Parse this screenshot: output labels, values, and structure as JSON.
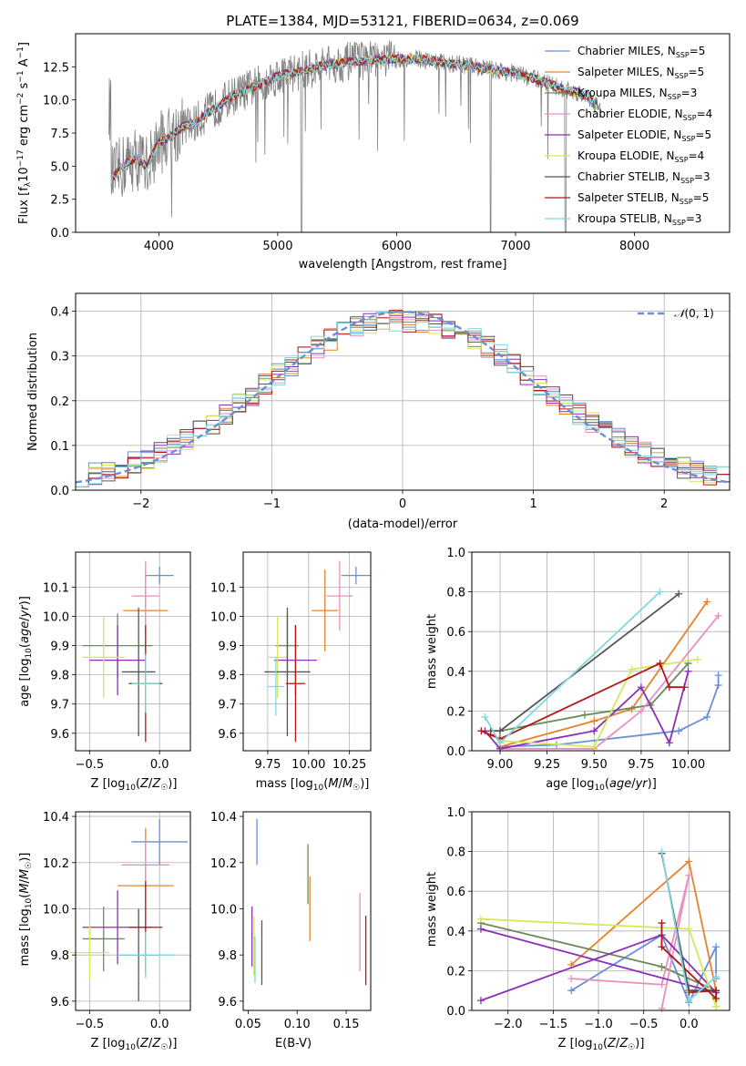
{
  "figure": {
    "title": "PLATE=1384, MJD=53121, FIBERID=0634, z=0.069"
  },
  "colors": [
    "#6a8fd8",
    "#e8812a",
    "#6d8a5a",
    "#e98fc0",
    "#8b2fb8",
    "#d4e85a",
    "#555555",
    "#b01818",
    "#7fd8e0"
  ],
  "chart_data": [
    {
      "id": "spectrum",
      "type": "line",
      "title": "PLATE=1384, MJD=53121, FIBERID=0634, z=0.069",
      "xlabel": "wavelength [Angstrom, rest frame]",
      "ylabel": "Flux [f$_\\lambda$10$^{-17}$ erg cm$^{-2}$ s$^{-1}$ A$^{-1}$]",
      "ylabel_parts": [
        "Flux [f",
        "λ",
        "10",
        "−17",
        " erg cm",
        "−2",
        " s",
        "−1",
        " A",
        "−1",
        "]"
      ],
      "xlim": [
        3300,
        8800
      ],
      "ylim": [
        0,
        15
      ],
      "xticks": [
        4000,
        5000,
        6000,
        7000,
        8000
      ],
      "yticks": [
        "0.0",
        "2.5",
        "5.0",
        "7.5",
        "10.0",
        "12.5"
      ],
      "grid": false,
      "legend_position": "right",
      "legend": [
        {
          "base": "Chabrier MILES, N",
          "sub": "SSP",
          "suffix": "=5"
        },
        {
          "base": "Salpeter MILES, N",
          "sub": "SSP",
          "suffix": "=5"
        },
        {
          "base": "Kroupa MILES, N",
          "sub": "SSP",
          "suffix": "=3"
        },
        {
          "base": "Chabrier ELODIE, N",
          "sub": "SSP",
          "suffix": "=4"
        },
        {
          "base": "Salpeter ELODIE, N",
          "sub": "SSP",
          "suffix": "=5"
        },
        {
          "base": "Kroupa ELODIE, N",
          "sub": "SSP",
          "suffix": "=4"
        },
        {
          "base": "Chabrier STELIB, N",
          "sub": "SSP",
          "suffix": "=3"
        },
        {
          "base": "Salpeter STELIB, N",
          "sub": "SSP",
          "suffix": "=5"
        },
        {
          "base": "Kroupa STELIB, N",
          "sub": "SSP",
          "suffix": "=3"
        }
      ],
      "continuum": [
        [
          3600,
          4.0
        ],
        [
          3700,
          5.0
        ],
        [
          3800,
          5.6
        ],
        [
          3900,
          5.0
        ],
        [
          4000,
          6.8
        ],
        [
          4100,
          7.2
        ],
        [
          4200,
          8.0
        ],
        [
          4300,
          8.2
        ],
        [
          4400,
          9.0
        ],
        [
          4500,
          9.5
        ],
        [
          4600,
          10.2
        ],
        [
          4800,
          11.0
        ],
        [
          5000,
          11.8
        ],
        [
          5200,
          12.2
        ],
        [
          5400,
          12.6
        ],
        [
          5600,
          12.9
        ],
        [
          5800,
          13.0
        ],
        [
          6000,
          13.1
        ],
        [
          6200,
          13.1
        ],
        [
          6400,
          12.8
        ],
        [
          6600,
          12.6
        ],
        [
          6800,
          12.3
        ],
        [
          7000,
          12.0
        ],
        [
          7200,
          11.5
        ],
        [
          7400,
          10.8
        ],
        [
          7600,
          10.4
        ],
        [
          7700,
          9.4
        ]
      ]
    },
    {
      "id": "residuals",
      "type": "histogram",
      "xlabel": "(data-model)/error",
      "ylabel": "Normed distribution",
      "xlim": [
        -2.5,
        2.5
      ],
      "ylim": [
        0,
        0.44
      ],
      "xticks": [
        "−2",
        "−1",
        "0",
        "1",
        "2"
      ],
      "yticks": [
        "0.0",
        "0.1",
        "0.2",
        "0.3",
        "0.4"
      ],
      "grid": true,
      "legend_position": "top-right",
      "reference_curve": "𝒩(0, 1)",
      "reference_label_parts": [
        "𝒩",
        "(0, 1)"
      ]
    },
    {
      "id": "age_vs_Z",
      "type": "errorbar",
      "xlabel": "Z [log10(Z/Z☉)]",
      "ylabel": "age [log10(age/yr)]",
      "xlim": [
        -0.6,
        0.22
      ],
      "ylim": [
        9.54,
        10.22
      ],
      "xticks": [
        "−0.5",
        "0.0"
      ],
      "yticks": [
        "9.6",
        "9.7",
        "9.8",
        "9.9",
        "10.0",
        "10.1"
      ],
      "grid": true,
      "points": [
        {
          "x": 0.0,
          "y": 10.14,
          "xerr": 0.1,
          "yerr": 0.03
        },
        {
          "x": -0.1,
          "y": 10.02,
          "xerr": 0.16,
          "yerr": 0.14
        },
        {
          "x": -0.3,
          "y": 9.9,
          "xerr": 0.25,
          "yerr": 0.11
        },
        {
          "x": -0.1,
          "y": 10.07,
          "xerr": 0.1,
          "yerr": 0.12
        },
        {
          "x": -0.3,
          "y": 9.85,
          "xerr": 0.2,
          "yerr": 0.12
        },
        {
          "x": -0.4,
          "y": 9.86,
          "xerr": 0.15,
          "yerr": 0.14
        },
        {
          "x": -0.15,
          "y": 9.81,
          "xerr": 0.12,
          "yerr": 0.22
        },
        {
          "x": -0.1,
          "y": 9.77,
          "xerr": 0.12,
          "yerr": 0.2
        },
        {
          "x": -0.1,
          "y": 9.77,
          "xerr": 0.1,
          "yerr": 0.1
        }
      ]
    },
    {
      "id": "age_vs_mass",
      "type": "errorbar",
      "xlabel": "mass [log10(M/M☉)]",
      "ylabel": "",
      "xlim": [
        9.6,
        10.38
      ],
      "ylim": [
        9.54,
        10.22
      ],
      "xticks": [
        "9.75",
        "10.00",
        "10.25"
      ],
      "yticks": [
        "9.6",
        "9.7",
        "9.8",
        "9.9",
        "10.0",
        "10.1"
      ],
      "grid": true,
      "points": [
        {
          "x": 10.29,
          "y": 10.14,
          "xerr": 0.09,
          "yerr": 0.03
        },
        {
          "x": 10.1,
          "y": 10.02,
          "xerr": 0.08,
          "yerr": 0.14
        },
        {
          "x": 9.87,
          "y": 9.9,
          "xerr": 0.07,
          "yerr": 0.11
        },
        {
          "x": 10.19,
          "y": 10.07,
          "xerr": 0.08,
          "yerr": 0.12
        },
        {
          "x": 9.92,
          "y": 9.85,
          "xerr": 0.13,
          "yerr": 0.12
        },
        {
          "x": 9.81,
          "y": 9.86,
          "xerr": 0.06,
          "yerr": 0.14
        },
        {
          "x": 9.87,
          "y": 9.81,
          "xerr": 0.14,
          "yerr": 0.22
        },
        {
          "x": 9.92,
          "y": 9.77,
          "xerr": 0.06,
          "yerr": 0.2
        },
        {
          "x": 9.8,
          "y": 9.76,
          "xerr": 0.05,
          "yerr": 0.1
        }
      ]
    },
    {
      "id": "weight_vs_age",
      "type": "line",
      "xlabel": "age [log10(age/yr)]",
      "ylabel": "mass weight",
      "xlim": [
        8.85,
        10.22
      ],
      "ylim": [
        0,
        1.0
      ],
      "xticks": [
        "9.00",
        "9.25",
        "9.50",
        "9.75",
        "10.00"
      ],
      "yticks": [
        "0.0",
        "0.2",
        "0.4",
        "0.6",
        "0.8",
        "1.0"
      ],
      "grid": true,
      "series": [
        {
          "points": [
            [
              9.0,
              0.02
            ],
            [
              9.3,
              0.03
            ],
            [
              9.95,
              0.1
            ],
            [
              10.1,
              0.17
            ],
            [
              10.16,
              0.33
            ],
            [
              10.16,
              0.38
            ]
          ]
        },
        {
          "points": [
            [
              9.0,
              0.02
            ],
            [
              9.5,
              0.15
            ],
            [
              9.7,
              0.21
            ],
            [
              10.1,
              0.75
            ]
          ]
        },
        {
          "points": [
            [
              9.0,
              0.1
            ],
            [
              9.45,
              0.18
            ],
            [
              9.8,
              0.23
            ],
            [
              10.0,
              0.44
            ]
          ]
        },
        {
          "points": [
            [
              9.0,
              0.01
            ],
            [
              9.5,
              0.01
            ],
            [
              9.75,
              0.2
            ],
            [
              10.16,
              0.68
            ]
          ]
        },
        {
          "points": [
            [
              8.92,
              0.1
            ],
            [
              9.0,
              0.01
            ],
            [
              9.5,
              0.1
            ],
            [
              9.75,
              0.32
            ],
            [
              9.9,
              0.04
            ],
            [
              10.0,
              0.4
            ]
          ]
        },
        {
          "points": [
            [
              9.0,
              0.05
            ],
            [
              9.5,
              0.02
            ],
            [
              9.7,
              0.41
            ],
            [
              10.05,
              0.46
            ]
          ]
        },
        {
          "points": [
            [
              8.95,
              0.1
            ],
            [
              9.0,
              0.1
            ],
            [
              9.95,
              0.79
            ]
          ]
        },
        {
          "points": [
            [
              8.9,
              0.1
            ],
            [
              8.95,
              0.08
            ],
            [
              9.0,
              0.06
            ],
            [
              9.85,
              0.44
            ],
            [
              9.9,
              0.32
            ],
            [
              9.98,
              0.32
            ]
          ]
        },
        {
          "points": [
            [
              8.92,
              0.17
            ],
            [
              9.0,
              0.04
            ],
            [
              9.85,
              0.8
            ]
          ]
        }
      ]
    },
    {
      "id": "mass_vs_Z",
      "type": "errorbar",
      "xlabel": "Z [log10(Z/Z☉)]",
      "ylabel": "mass [log10(M/M☉)]",
      "xlim": [
        -0.6,
        0.22
      ],
      "ylim": [
        9.56,
        10.42
      ],
      "xticks": [
        "−0.5",
        "0.0"
      ],
      "yticks": [
        "9.6",
        "9.8",
        "10.0",
        "10.2",
        "10.4"
      ],
      "grid": true,
      "points": [
        {
          "x": 0.0,
          "y": 10.29,
          "xerr": 0.2,
          "yerr": 0.1
        },
        {
          "x": -0.1,
          "y": 10.1,
          "xerr": 0.2,
          "yerr": 0.25
        },
        {
          "x": -0.4,
          "y": 9.87,
          "xerr": 0.15,
          "yerr": 0.14
        },
        {
          "x": -0.1,
          "y": 10.19,
          "xerr": 0.17,
          "yerr": 0.1
        },
        {
          "x": -0.3,
          "y": 9.92,
          "xerr": 0.25,
          "yerr": 0.16
        },
        {
          "x": -0.5,
          "y": 9.81,
          "xerr": 0.14,
          "yerr": 0.12
        },
        {
          "x": -0.15,
          "y": 9.8,
          "xerr": 0.15,
          "yerr": 0.2
        },
        {
          "x": -0.1,
          "y": 9.92,
          "xerr": 0.12,
          "yerr": 0.2
        },
        {
          "x": -0.1,
          "y": 9.8,
          "xerr": 0.2,
          "yerr": 0.1
        }
      ]
    },
    {
      "id": "mass_vs_ebv",
      "type": "errorbar",
      "xlabel": "E(B-V)",
      "ylabel": "",
      "xlim": [
        0.045,
        0.175
      ],
      "ylim": [
        9.56,
        10.42
      ],
      "xticks": [
        "0.05",
        "0.10",
        "0.15"
      ],
      "yticks": [
        "9.6",
        "9.8",
        "10.0",
        "10.2",
        "10.4"
      ],
      "grid": false,
      "points": [
        {
          "x": 0.059,
          "y": 10.29,
          "xerr": 0,
          "yerr": 0.1
        },
        {
          "x": 0.113,
          "y": 10.0,
          "xerr": 0,
          "yerr": 0.14
        },
        {
          "x": 0.111,
          "y": 10.15,
          "xerr": 0,
          "yerr": 0.13
        },
        {
          "x": 0.164,
          "y": 9.9,
          "xerr": 0,
          "yerr": 0.17
        },
        {
          "x": 0.054,
          "y": 9.88,
          "xerr": 0,
          "yerr": 0.13
        },
        {
          "x": 0.056,
          "y": 9.84,
          "xerr": 0,
          "yerr": 0.13
        },
        {
          "x": 0.064,
          "y": 9.81,
          "xerr": 0,
          "yerr": 0.14
        },
        {
          "x": 0.17,
          "y": 9.82,
          "xerr": 0,
          "yerr": 0.15
        },
        {
          "x": 0.057,
          "y": 9.78,
          "xerr": 0,
          "yerr": 0.1
        }
      ]
    },
    {
      "id": "weight_vs_Z",
      "type": "line",
      "xlabel": "Z [log10(Z/Z☉)]",
      "ylabel": "mass weight",
      "xlim": [
        -2.4,
        0.45
      ],
      "ylim": [
        0,
        1.0
      ],
      "xticks": [
        "−2.0",
        "−1.5",
        "−1.0",
        "−0.5",
        "0.0"
      ],
      "yticks": [
        "0.0",
        "0.2",
        "0.4",
        "0.6",
        "0.8",
        "1.0"
      ],
      "grid": true,
      "series": [
        {
          "points": [
            [
              -1.3,
              0.1
            ],
            [
              -0.3,
              0.38
            ],
            [
              0.0,
              0.04
            ],
            [
              0.3,
              0.32
            ],
            [
              0.3,
              0.16
            ]
          ]
        },
        {
          "points": [
            [
              -1.3,
              0.23
            ],
            [
              0.0,
              0.75
            ],
            [
              0.3,
              0.1
            ],
            [
              0.3,
              0.02
            ]
          ]
        },
        {
          "points": [
            [
              -2.3,
              0.44
            ],
            [
              -0.3,
              0.22
            ],
            [
              0.3,
              0.1
            ],
            [
              0.0,
              0.1
            ]
          ]
        },
        {
          "points": [
            [
              -1.3,
              0.16
            ],
            [
              -0.3,
              0.13
            ],
            [
              0.0,
              0.68
            ],
            [
              -0.3,
              0.01
            ]
          ]
        },
        {
          "points": [
            [
              -2.3,
              0.05
            ],
            [
              -0.3,
              0.38
            ],
            [
              0.3,
              0.09
            ],
            [
              -2.3,
              0.41
            ]
          ]
        },
        {
          "points": [
            [
              -2.3,
              0.46
            ],
            [
              0.0,
              0.41
            ],
            [
              0.3,
              0.02
            ],
            [
              0.3,
              0.05
            ]
          ]
        },
        {
          "points": [
            [
              -0.3,
              0.79
            ],
            [
              0.0,
              0.1
            ],
            [
              0.3,
              0.1
            ]
          ]
        },
        {
          "points": [
            [
              -0.3,
              0.44
            ],
            [
              -0.3,
              0.32
            ],
            [
              0.3,
              0.06
            ],
            [
              0.3,
              0.1
            ],
            [
              0.0,
              0.09
            ]
          ]
        },
        {
          "points": [
            [
              -0.3,
              0.8
            ],
            [
              0.0,
              0.05
            ],
            [
              0.3,
              0.17
            ]
          ]
        }
      ]
    }
  ]
}
